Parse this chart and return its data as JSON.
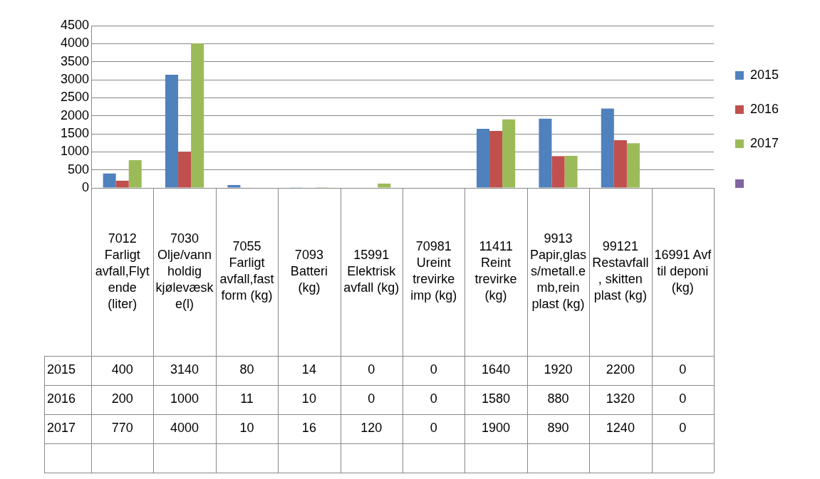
{
  "chart_data": {
    "type": "bar",
    "categories": [
      "7012 Farligt avfall,Flytende (liter)",
      "7030 Olje/vannholdig kjølevæske(l)",
      "7055 Farligt avfall,fast form (kg)",
      "7093 Batteri (kg)",
      "15991 Elektrisk avfall (kg)",
      "70981 Ureint trevirke imp (kg)",
      "11411 Reint trevirke (kg)",
      "9913 Papir,glass/metall.emb,rein plast (kg)",
      "99121 Restavfall, skitten plast (kg)",
      "16991 Avf til deponi (kg)"
    ],
    "series": [
      {
        "name": "2015",
        "color": "#4f81bd",
        "values": [
          400,
          3140,
          80,
          14,
          0,
          0,
          1640,
          1920,
          2200,
          0
        ]
      },
      {
        "name": "2016",
        "color": "#c0504d",
        "values": [
          200,
          1000,
          11,
          10,
          0,
          0,
          1580,
          880,
          1320,
          0
        ]
      },
      {
        "name": "2017",
        "color": "#9bbb59",
        "values": [
          770,
          4000,
          10,
          16,
          120,
          0,
          1900,
          890,
          1240,
          0
        ]
      },
      {
        "color": "#8064a2",
        "values": [
          null,
          null,
          null,
          null,
          null,
          null,
          null,
          null,
          null,
          null
        ]
      }
    ],
    "ylim": [
      0,
      4500
    ],
    "yticks": [
      0,
      500,
      1000,
      1500,
      2000,
      2500,
      3000,
      3500,
      4000,
      4500
    ],
    "grid": "y",
    "legend": "right",
    "data_labels": true
  }
}
